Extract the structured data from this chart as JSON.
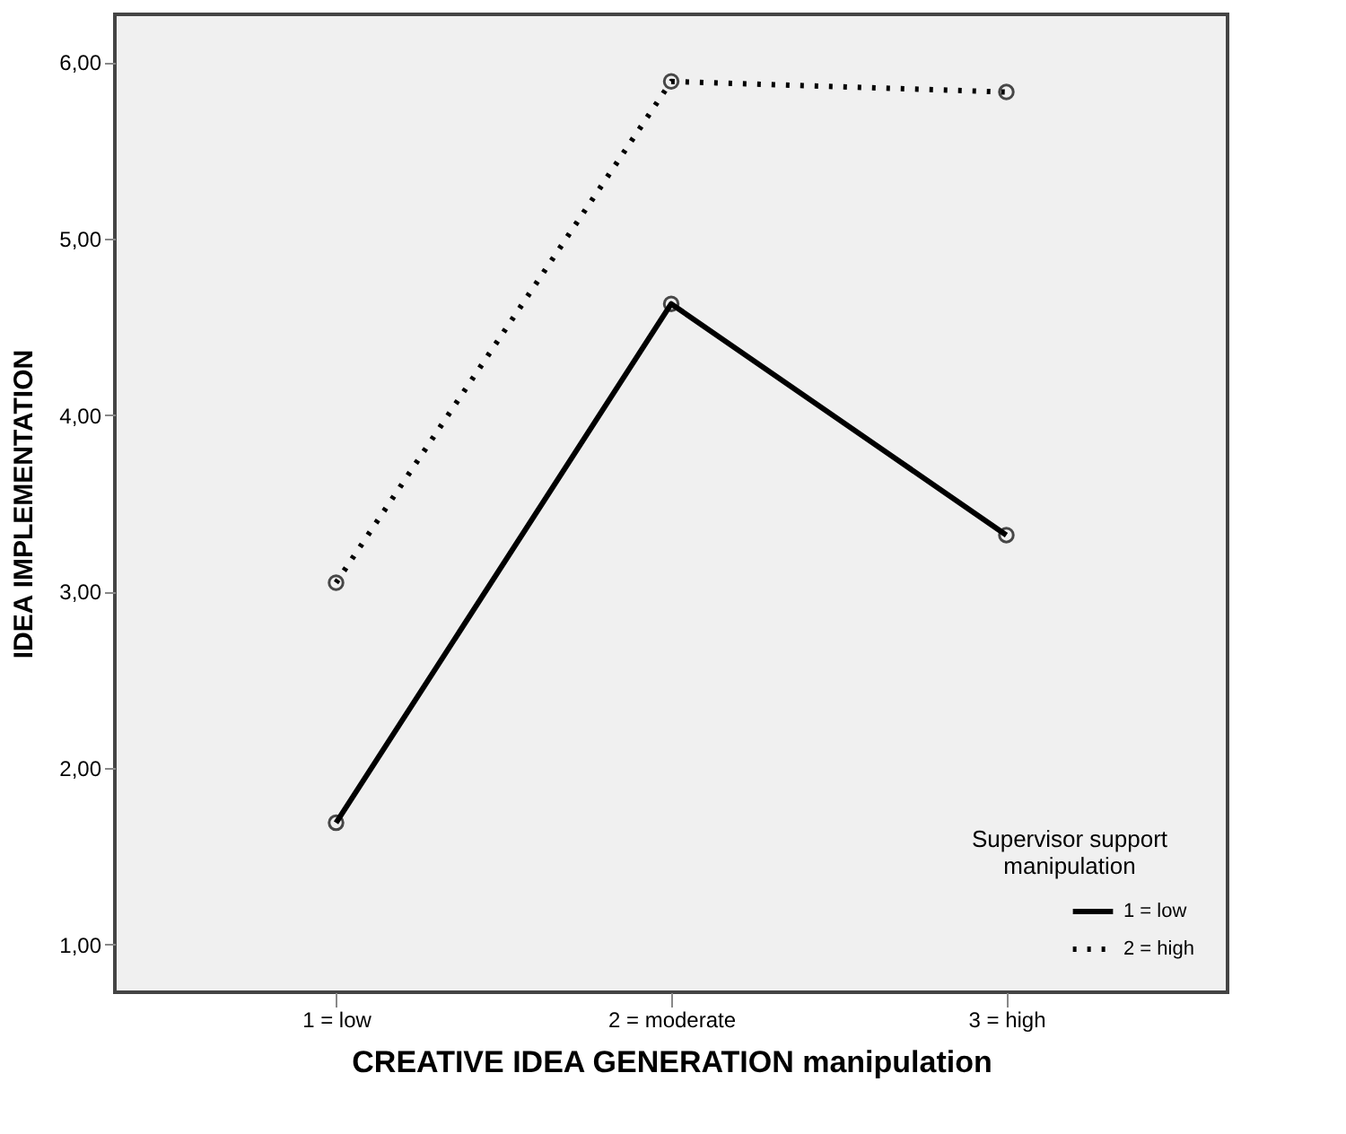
{
  "chart_data": {
    "type": "line",
    "xlabel": "CREATIVE IDEA GENERATION manipulation",
    "ylabel": "IDEA IMPLEMENTATION",
    "legend_title": "Supervisor support manipulation",
    "categories": [
      "1 = low",
      "2 = moderate",
      "3 = high"
    ],
    "series": [
      {
        "name": "1 = low",
        "color": "#000000",
        "line_style": "solid",
        "values": [
          1.69,
          4.63,
          3.32
        ]
      },
      {
        "name": "2 = high",
        "color": "#000000",
        "line_style": "dotted",
        "values": [
          3.05,
          5.89,
          5.83
        ]
      }
    ],
    "ylim": [
      0.73,
      6.27
    ],
    "yticks": [
      {
        "value": 1,
        "label": "1,00"
      },
      {
        "value": 2,
        "label": "2,00"
      },
      {
        "value": 3,
        "label": "3,00"
      },
      {
        "value": 4,
        "label": "4,00"
      },
      {
        "value": 5,
        "label": "5,00"
      },
      {
        "value": 6,
        "label": "6,00"
      }
    ],
    "grid": false,
    "legend": "bottom right",
    "marker": "circle"
  }
}
